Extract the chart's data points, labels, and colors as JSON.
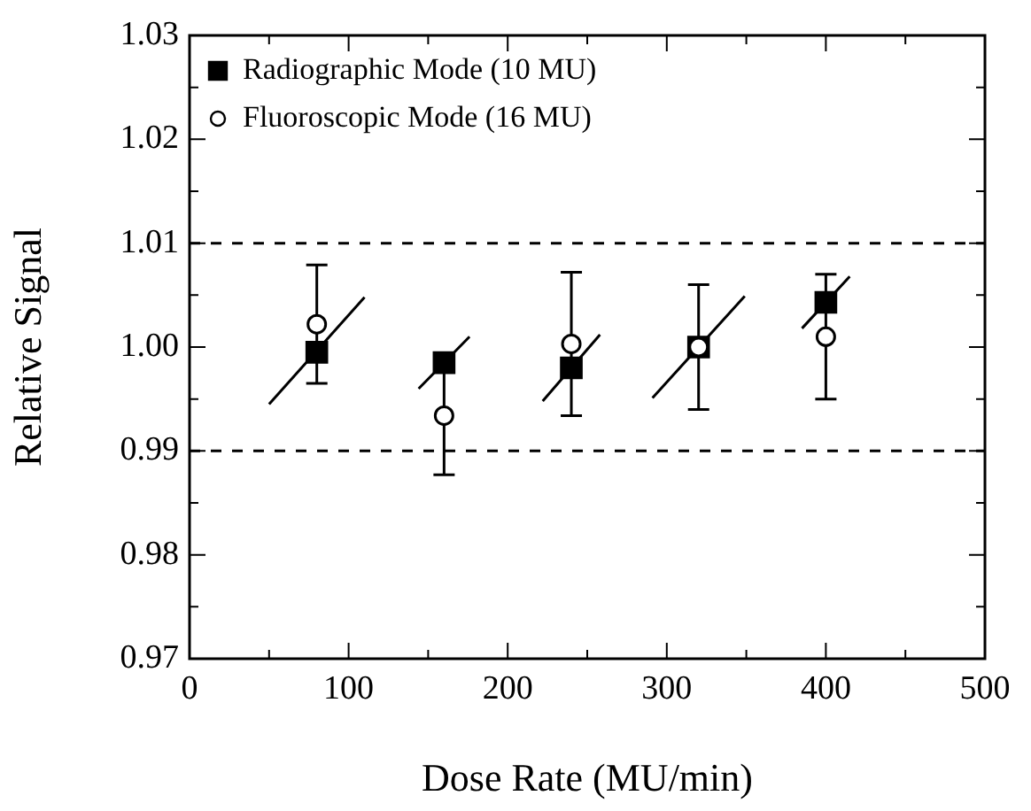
{
  "chart_data": {
    "type": "scatter",
    "xlabel": "Dose Rate (MU/min)",
    "ylabel": "Relative Signal",
    "xlim": [
      0,
      500
    ],
    "ylim": [
      0.97,
      1.03
    ],
    "xticks": [
      0,
      {
        "value": 50,
        "label": null
      },
      100,
      {
        "value": 150,
        "label": null
      },
      200,
      {
        "value": 250,
        "label": null
      },
      300,
      {
        "value": 350,
        "label": null
      },
      400,
      {
        "value": 450,
        "label": null
      },
      500
    ],
    "yticks": [
      {
        "value": 0.97,
        "label": "0.97"
      },
      {
        "value": 0.975,
        "label": null
      },
      {
        "value": 0.98,
        "label": "0.98"
      },
      {
        "value": 0.985,
        "label": null
      },
      {
        "value": 0.99,
        "label": "0.99"
      },
      {
        "value": 0.995,
        "label": null
      },
      {
        "value": 1.0,
        "label": "1.00"
      },
      {
        "value": 1.005,
        "label": null
      },
      {
        "value": 1.01,
        "label": "1.01"
      },
      {
        "value": 1.015,
        "label": null
      },
      {
        "value": 1.02,
        "label": "1.02"
      },
      {
        "value": 1.025,
        "label": null
      },
      {
        "value": 1.03,
        "label": "1.03"
      }
    ],
    "grid": false,
    "legend": "top left",
    "ref_lines": [
      {
        "axis": "y",
        "value": 1.01,
        "line_style": "dashed"
      },
      {
        "axis": "y",
        "value": 0.99,
        "line_style": "dashed"
      }
    ],
    "series": [
      {
        "name": "Radiographic Mode (10 MU)",
        "color": "#000000",
        "marker": "square",
        "x": [
          80,
          160,
          240,
          320,
          400
        ],
        "values": [
          0.9995,
          0.9985,
          0.998,
          1.0,
          1.0043
        ]
      },
      {
        "type": "line",
        "color": "#000000",
        "marker": "none",
        "x": [
          50,
          110,
          null,
          144,
          176,
          null,
          222,
          258,
          null,
          291,
          349,
          null,
          385,
          415
        ],
        "values": [
          0.9945,
          1.0048,
          null,
          0.996,
          1.001,
          null,
          0.9948,
          1.0012,
          null,
          0.9951,
          1.0049,
          null,
          1.0018,
          1.0068
        ]
      },
      {
        "name": "Fluoroscopic Mode (16 MU)",
        "color": "#000000",
        "marker": "circle",
        "x": [
          80,
          160,
          240,
          320,
          400
        ],
        "values": [
          1.0022,
          0.9934,
          1.0003,
          1.0,
          1.001
        ],
        "errors": [
          0.0057,
          0.0057,
          0.0069,
          0.006,
          0.006
        ]
      }
    ]
  }
}
